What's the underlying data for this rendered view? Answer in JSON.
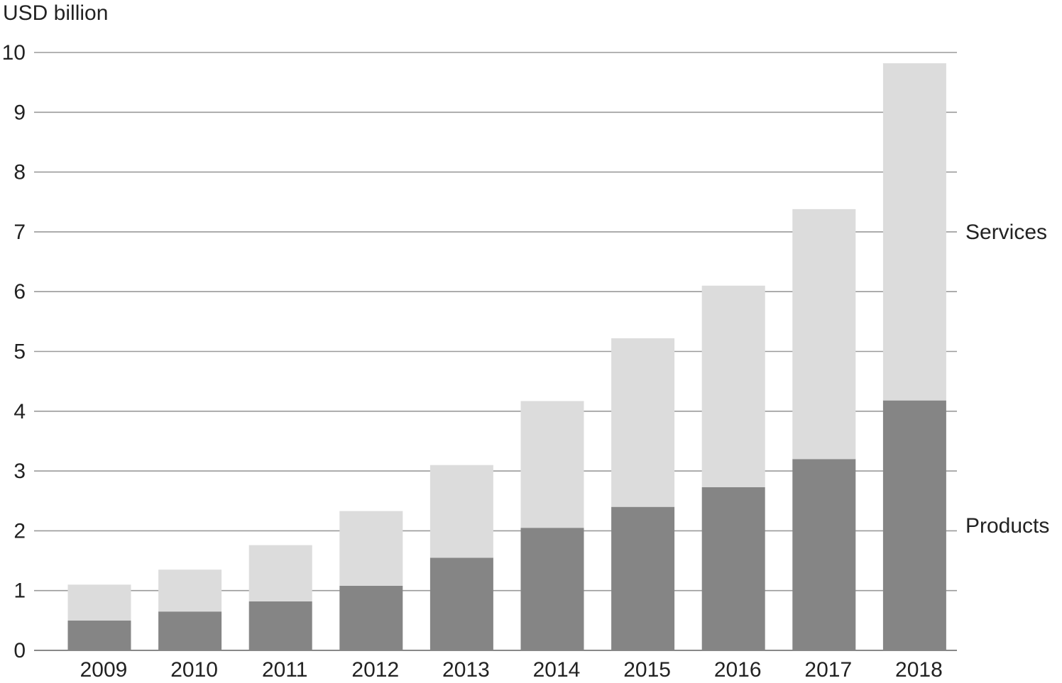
{
  "chart_data": {
    "type": "bar",
    "stacked": true,
    "ylabel": "USD billion",
    "ylim": [
      0,
      10
    ],
    "yticks": [
      0,
      1,
      2,
      3,
      4,
      5,
      6,
      7,
      8,
      9,
      10
    ],
    "categories": [
      "2009",
      "2010",
      "2011",
      "2012",
      "2013",
      "2014",
      "2015",
      "2016",
      "2017",
      "2018"
    ],
    "series": [
      {
        "name": "Products",
        "color": "#858585",
        "values": [
          0.5,
          0.65,
          0.82,
          1.08,
          1.55,
          2.05,
          2.4,
          2.73,
          3.2,
          4.18
        ]
      },
      {
        "name": "Services",
        "color": "#dcdcdc",
        "values": [
          0.6,
          0.7,
          0.94,
          1.25,
          1.55,
          2.12,
          2.82,
          3.37,
          4.18,
          5.64
        ]
      }
    ],
    "grid": true,
    "legend": "right (labels next to the last bar)"
  }
}
